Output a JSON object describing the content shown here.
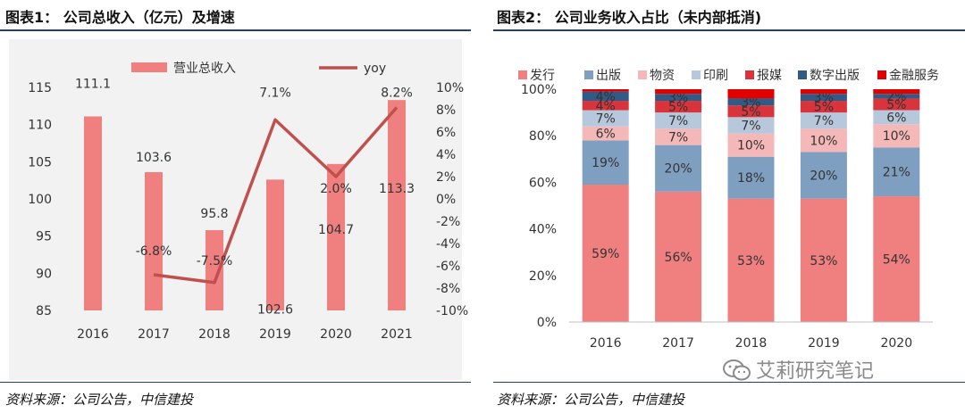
{
  "left": {
    "title": "图表1： 公司总收入（亿元）及增速",
    "source": "资料来源：公司公告，中信建投"
  },
  "right": {
    "title": "图表2： 公司业务收入占比（未内部抵消)",
    "source": "资料来源：公司公告，中信建投"
  },
  "watermark": "艾莉研究笔记",
  "colors": {
    "bar": "#f08080",
    "line": "#c0504d",
    "rule": "#1f3f77"
  },
  "chart_data": [
    {
      "type": "bar",
      "title": "公司总收入（亿元）及增速",
      "categories": [
        "2016",
        "2017",
        "2018",
        "2019",
        "2020",
        "2021"
      ],
      "series": [
        {
          "name": "营业总收入",
          "type": "bar",
          "axis": "left",
          "values": [
            111.1,
            103.6,
            95.8,
            102.6,
            104.7,
            113.3
          ],
          "labels": [
            "111.1",
            "103.6",
            "95.8",
            "102.6",
            "104.7",
            "113.3"
          ]
        },
        {
          "name": "yoy",
          "type": "line",
          "axis": "right",
          "values": [
            null,
            -6.8,
            -7.5,
            7.1,
            2.0,
            8.2
          ],
          "labels": [
            "",
            "-6.8%",
            "-7.5%",
            "7.1%",
            "2.0%",
            "8.2%"
          ]
        }
      ],
      "ylim_left": [
        85,
        115
      ],
      "yticks_left": [
        "115",
        "110",
        "105",
        "100",
        "95",
        "90",
        "85"
      ],
      "ylim_right": [
        -10,
        10
      ],
      "yticks_right": [
        "10%",
        "8%",
        "6%",
        "4%",
        "2%",
        "0%",
        "-2%",
        "-4%",
        "-6%",
        "-8%",
        "-10%"
      ],
      "legend": "top-center"
    },
    {
      "type": "bar",
      "stacked": true,
      "title": "公司业务收入占比（未内部抵消)",
      "categories": [
        "2016",
        "2017",
        "2018",
        "2019",
        "2020"
      ],
      "series": [
        {
          "name": "发行",
          "color": "#f08080",
          "values": [
            59,
            56,
            53,
            53,
            54
          ],
          "labels": [
            "59%",
            "56%",
            "53%",
            "53%",
            "54%"
          ]
        },
        {
          "name": "出版",
          "color": "#7f9fc0",
          "values": [
            19,
            20,
            18,
            20,
            21
          ],
          "labels": [
            "19%",
            "20%",
            "18%",
            "20%",
            "21%"
          ]
        },
        {
          "name": "物资",
          "color": "#f5b8b8",
          "values": [
            6,
            7,
            10,
            10,
            10
          ],
          "labels": [
            "6%",
            "7%",
            "10%",
            "10%",
            "10%"
          ]
        },
        {
          "name": "印刷",
          "color": "#b7c8dc",
          "values": [
            7,
            7,
            7,
            7,
            6
          ],
          "labels": [
            "7%",
            "7%",
            "7%",
            "7%",
            "6%"
          ]
        },
        {
          "name": "报媒",
          "color": "#d9343c",
          "values": [
            4,
            5,
            5,
            5,
            5
          ],
          "labels": [
            "4%",
            "5%",
            "5%",
            "5%",
            "5%"
          ]
        },
        {
          "name": "数字出版",
          "color": "#2f5b86",
          "values": [
            4,
            3,
            3,
            3,
            2
          ],
          "labels": [
            "4%",
            "3%",
            "3%",
            "3%",
            "2%"
          ]
        },
        {
          "name": "金融服务",
          "color": "#e00000",
          "values": [
            1,
            2,
            4,
            2,
            2
          ],
          "labels": [
            "",
            "",
            "",
            "",
            ""
          ]
        }
      ],
      "ylim": [
        0,
        100
      ],
      "yticks": [
        "100%",
        "80%",
        "60%",
        "40%",
        "20%",
        "0%"
      ],
      "legend": "top"
    }
  ]
}
